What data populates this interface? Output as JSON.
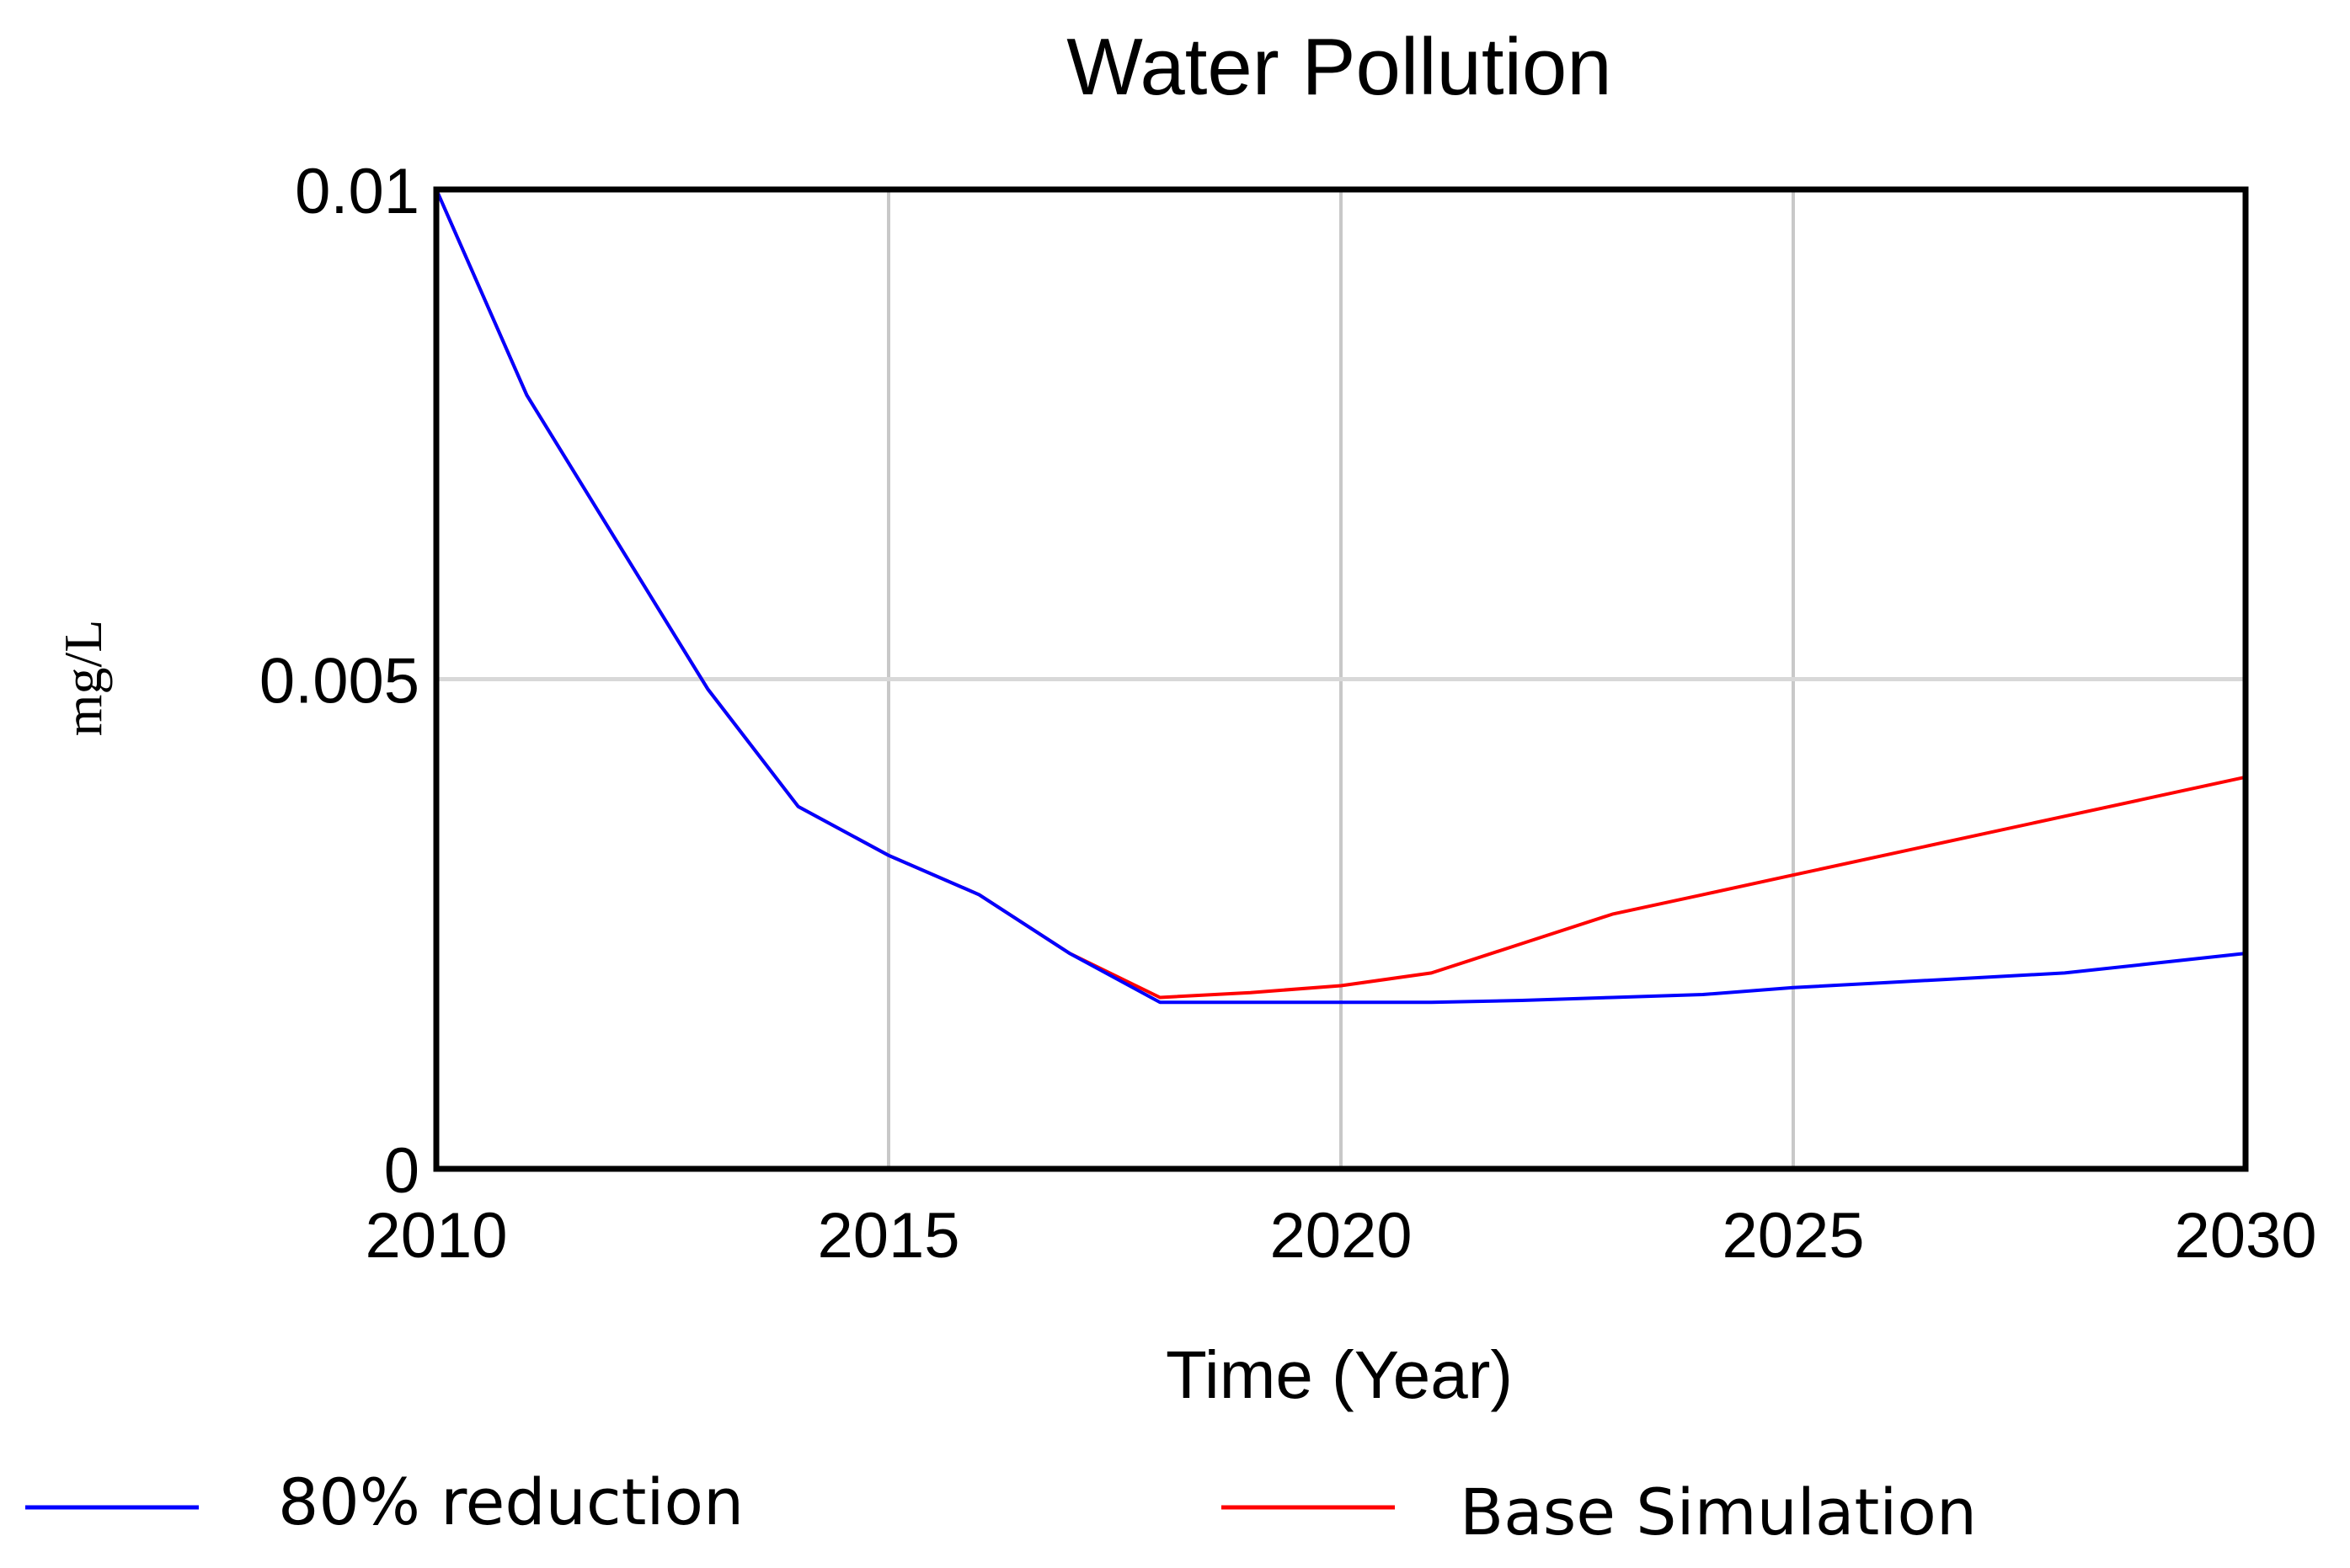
{
  "chart_data": {
    "type": "line",
    "title": "Water Pollution",
    "xlabel": "Time (Year)",
    "ylabel": "mg/L",
    "xlim": [
      2010,
      2030
    ],
    "ylim": [
      0,
      0.01
    ],
    "x_ticks": [
      "2010",
      "2015",
      "2020",
      "2025",
      "2030"
    ],
    "y_ticks": [
      "0",
      "0.005",
      "0.01"
    ],
    "x_tick_values": [
      2010,
      2015,
      2020,
      2025,
      2030
    ],
    "y_tick_values": [
      0,
      0.005,
      0.01
    ],
    "grid": true,
    "legend_position": "bottom",
    "x": [
      2010,
      2011,
      2012,
      2013,
      2014,
      2015,
      2016,
      2017,
      2018,
      2019,
      2020,
      2021,
      2022,
      2023,
      2024,
      2025,
      2026,
      2027,
      2028,
      2029,
      2030
    ],
    "series": [
      {
        "name": "Base Simulation",
        "color": "#ff0000",
        "values": [
          0.01,
          0.0079,
          0.0064,
          0.0049,
          0.0037,
          0.0032,
          0.0028,
          0.0022,
          0.00175,
          0.0018,
          0.00187,
          0.002,
          0.0023,
          0.0026,
          0.0028,
          0.003,
          0.0032,
          0.0034,
          0.0036,
          0.0038,
          0.004
        ]
      },
      {
        "name": "80% reduction",
        "color": "#0000ff",
        "values": [
          0.01,
          0.0079,
          0.0064,
          0.0049,
          0.0037,
          0.0032,
          0.0028,
          0.0022,
          0.0017,
          0.0017,
          0.0017,
          0.0017,
          0.00172,
          0.00175,
          0.00178,
          0.00185,
          0.0019,
          0.00195,
          0.002,
          0.0021,
          0.0022
        ]
      }
    ],
    "legend": [
      {
        "label": "80% reduction",
        "color": "#0000ff"
      },
      {
        "label": "Base Simulation",
        "color": "#ff0000"
      }
    ]
  }
}
